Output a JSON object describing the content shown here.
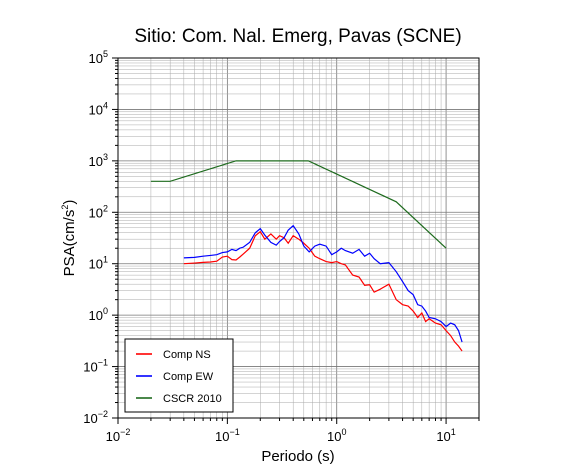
{
  "chart_data": {
    "type": "line",
    "title": "Sitio: Com. Nal. Emerg, Pavas (SCNE)",
    "xlabel": "Periodo (s)",
    "ylabel_main": "PSA(cm/s",
    "ylabel_sup": "2",
    "ylabel_close": ")",
    "x_scale": "log",
    "y_scale": "log",
    "xlim": [
      0.01,
      20
    ],
    "ylim": [
      0.01,
      100000
    ],
    "x_ticks": [
      {
        "value": 0.01,
        "base": "10",
        "exp": "−2"
      },
      {
        "value": 0.1,
        "base": "10",
        "exp": "−1"
      },
      {
        "value": 1,
        "base": "10",
        "exp": "0"
      },
      {
        "value": 10,
        "base": "10",
        "exp": "1"
      }
    ],
    "y_ticks": [
      {
        "value": 0.01,
        "base": "10",
        "exp": "−2"
      },
      {
        "value": 0.1,
        "base": "10",
        "exp": "−1"
      },
      {
        "value": 1,
        "base": "10",
        "exp": "0"
      },
      {
        "value": 10,
        "base": "10",
        "exp": "1"
      },
      {
        "value": 100,
        "base": "10",
        "exp": "2"
      },
      {
        "value": 1000,
        "base": "10",
        "exp": "3"
      },
      {
        "value": 10000,
        "base": "10",
        "exp": "4"
      },
      {
        "value": 100000,
        "base": "10",
        "exp": "5"
      }
    ],
    "grid": true,
    "legend_position": "bottom-left",
    "series": [
      {
        "name": "Comp NS",
        "color": "#ff0000",
        "points": [
          [
            0.04,
            10.0
          ],
          [
            0.05,
            10.3
          ],
          [
            0.06,
            10.6
          ],
          [
            0.07,
            10.8
          ],
          [
            0.08,
            11.2
          ],
          [
            0.09,
            13.5
          ],
          [
            0.1,
            14.0
          ],
          [
            0.11,
            12.0
          ],
          [
            0.12,
            11.8
          ],
          [
            0.13,
            13.5
          ],
          [
            0.14,
            15.5
          ],
          [
            0.16,
            20.0
          ],
          [
            0.18,
            35.0
          ],
          [
            0.2,
            42.0
          ],
          [
            0.22,
            30.0
          ],
          [
            0.25,
            38.0
          ],
          [
            0.28,
            30.0
          ],
          [
            0.3,
            35.0
          ],
          [
            0.33,
            32.0
          ],
          [
            0.36,
            25.0
          ],
          [
            0.4,
            35.0
          ],
          [
            0.45,
            30.0
          ],
          [
            0.5,
            25.0
          ],
          [
            0.56,
            20.0
          ],
          [
            0.63,
            14.0
          ],
          [
            0.7,
            12.5
          ],
          [
            0.8,
            11.0
          ],
          [
            0.9,
            10.5
          ],
          [
            1.0,
            11.0
          ],
          [
            1.1,
            10.0
          ],
          [
            1.2,
            9.5
          ],
          [
            1.4,
            6.0
          ],
          [
            1.6,
            5.5
          ],
          [
            1.8,
            3.8
          ],
          [
            2.0,
            3.9
          ],
          [
            2.2,
            2.8
          ],
          [
            2.5,
            3.2
          ],
          [
            3.0,
            4.0
          ],
          [
            3.5,
            2.0
          ],
          [
            4.0,
            1.6
          ],
          [
            4.5,
            1.5
          ],
          [
            5.0,
            1.2
          ],
          [
            5.5,
            0.9
          ],
          [
            6.0,
            1.1
          ],
          [
            6.5,
            0.75
          ],
          [
            7.0,
            0.85
          ],
          [
            8.0,
            0.7
          ],
          [
            9.0,
            0.65
          ],
          [
            10.0,
            0.5
          ],
          [
            11.0,
            0.4
          ],
          [
            12.0,
            0.3
          ],
          [
            13.0,
            0.25
          ],
          [
            14.0,
            0.2
          ]
        ]
      },
      {
        "name": "Comp EW",
        "color": "#0000ff",
        "points": [
          [
            0.04,
            13.0
          ],
          [
            0.05,
            13.3
          ],
          [
            0.06,
            14.0
          ],
          [
            0.07,
            14.5
          ],
          [
            0.08,
            15.0
          ],
          [
            0.09,
            16.5
          ],
          [
            0.1,
            17.0
          ],
          [
            0.11,
            19.0
          ],
          [
            0.12,
            18.0
          ],
          [
            0.13,
            20.0
          ],
          [
            0.14,
            21.0
          ],
          [
            0.16,
            26.0
          ],
          [
            0.18,
            40.0
          ],
          [
            0.2,
            48.0
          ],
          [
            0.22,
            36.0
          ],
          [
            0.25,
            26.0
          ],
          [
            0.28,
            23.0
          ],
          [
            0.3,
            27.0
          ],
          [
            0.33,
            32.0
          ],
          [
            0.36,
            45.0
          ],
          [
            0.4,
            55.0
          ],
          [
            0.45,
            38.0
          ],
          [
            0.5,
            22.0
          ],
          [
            0.56,
            17.0
          ],
          [
            0.63,
            22.0
          ],
          [
            0.7,
            24.0
          ],
          [
            0.8,
            22.0
          ],
          [
            0.9,
            15.0
          ],
          [
            1.0,
            17.0
          ],
          [
            1.1,
            20.0
          ],
          [
            1.2,
            18.0
          ],
          [
            1.4,
            16.0
          ],
          [
            1.6,
            19.0
          ],
          [
            1.8,
            14.0
          ],
          [
            2.0,
            16.0
          ],
          [
            2.2,
            12.5
          ],
          [
            2.5,
            10.0
          ],
          [
            3.0,
            10.5
          ],
          [
            3.5,
            7.0
          ],
          [
            4.0,
            4.5
          ],
          [
            4.5,
            3.0
          ],
          [
            5.0,
            2.5
          ],
          [
            5.5,
            1.6
          ],
          [
            6.0,
            1.5
          ],
          [
            6.5,
            1.2
          ],
          [
            7.0,
            0.9
          ],
          [
            8.0,
            0.85
          ],
          [
            9.0,
            0.75
          ],
          [
            10.0,
            0.6
          ],
          [
            11.0,
            0.7
          ],
          [
            12.0,
            0.65
          ],
          [
            13.0,
            0.5
          ],
          [
            14.0,
            0.3
          ]
        ]
      },
      {
        "name": "CSCR 2010",
        "color": "#1e6b1e",
        "points": [
          [
            0.02,
            400
          ],
          [
            0.03,
            400
          ],
          [
            0.12,
            1000
          ],
          [
            0.55,
            1000
          ],
          [
            3.5,
            160
          ],
          [
            10.0,
            20
          ]
        ]
      }
    ]
  }
}
